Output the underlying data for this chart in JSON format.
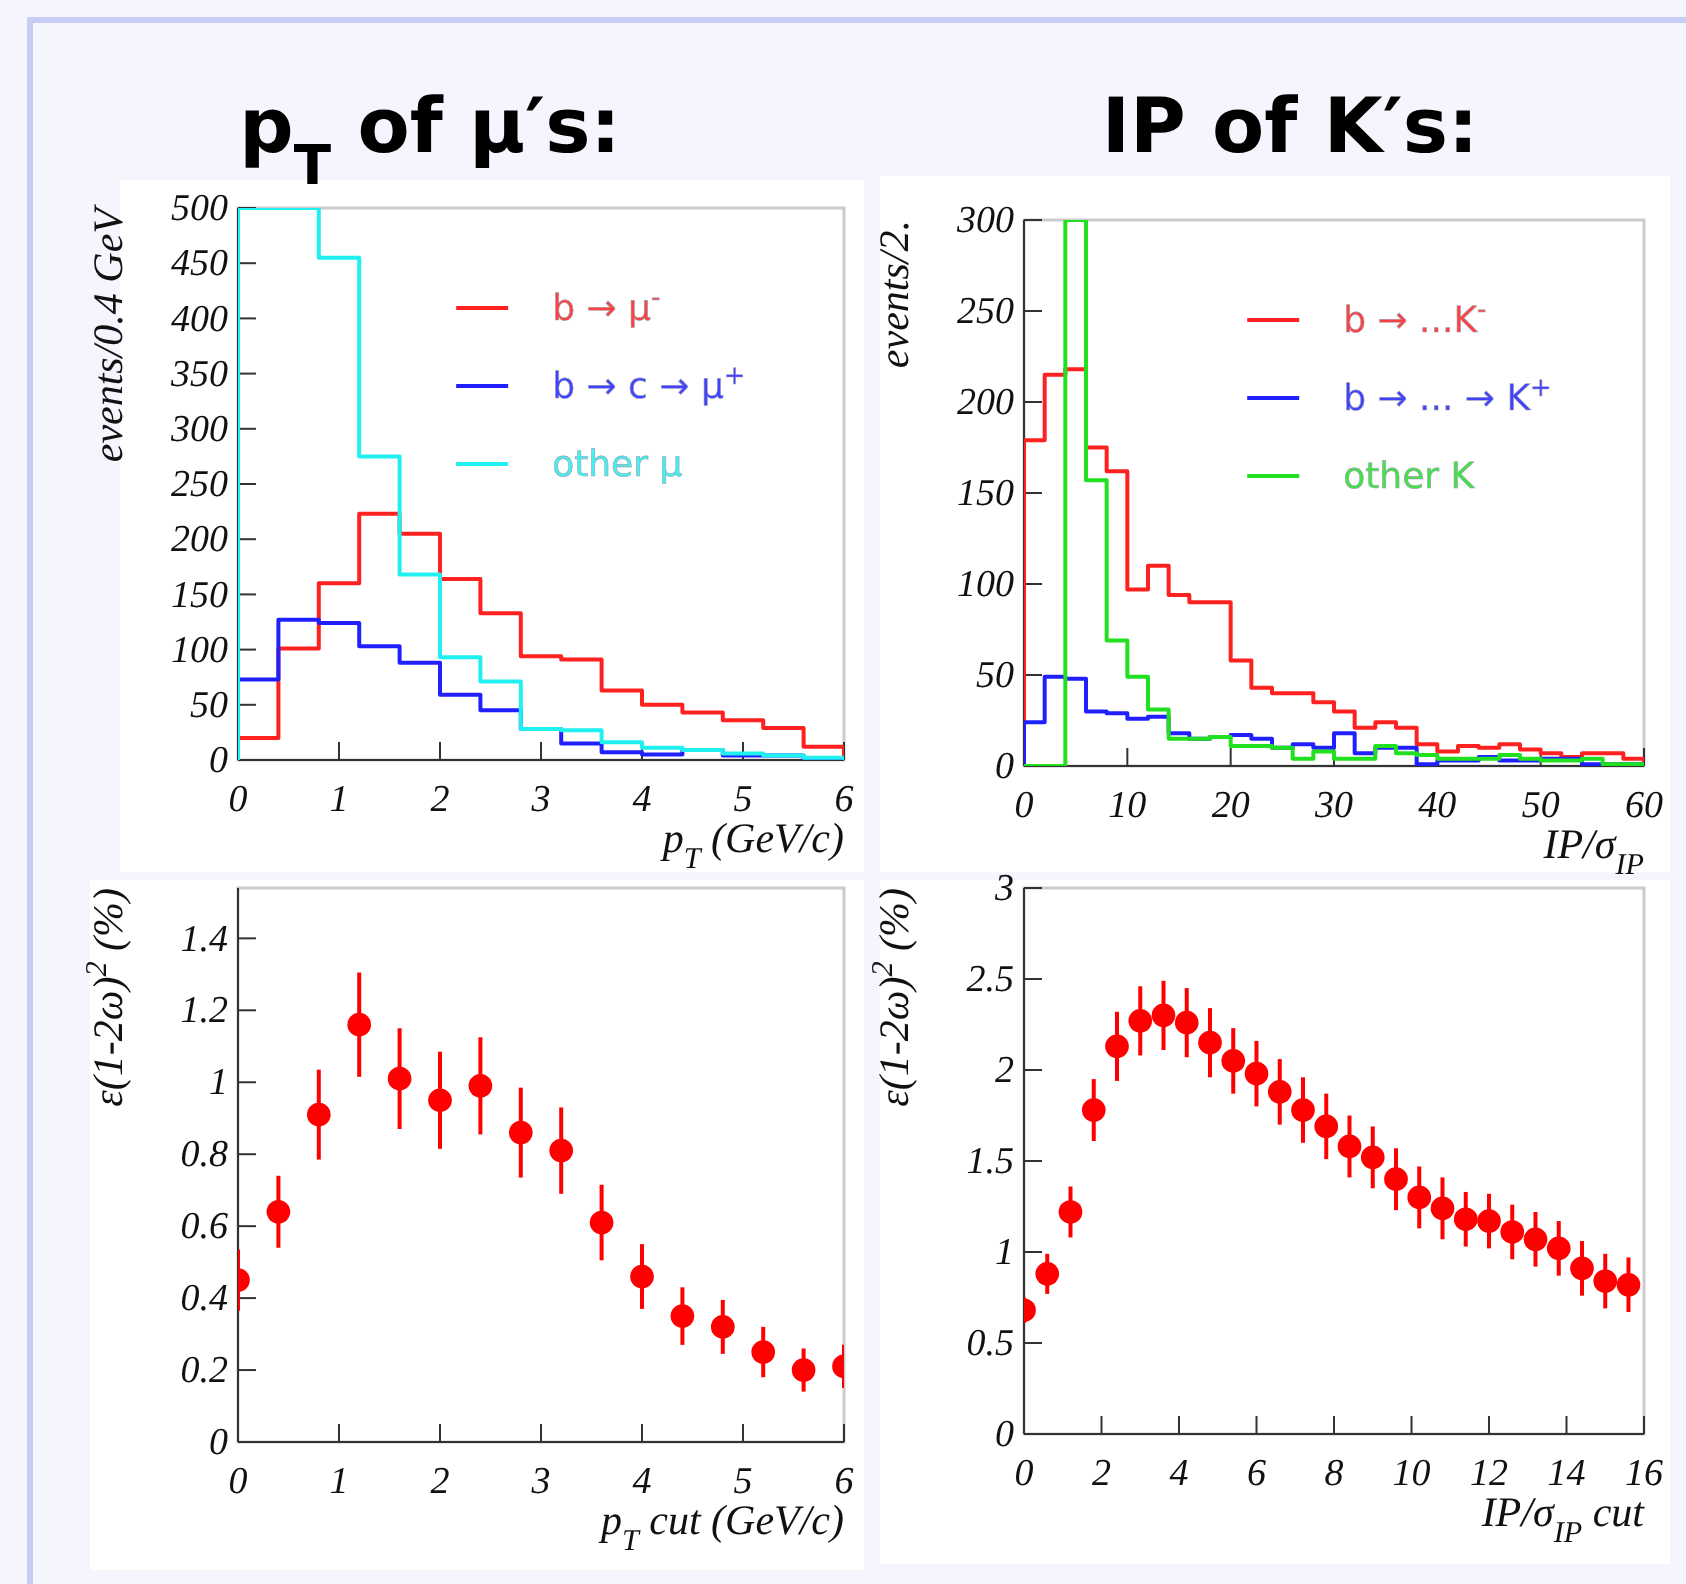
{
  "chart_data": [
    {
      "type": "histogram",
      "title": "p$_{T}$ of μ′s:",
      "xlabel": "p$_{T}$ (GeV/c)",
      "ylabel": "events/0.4 GeV",
      "legend": "top right",
      "bins": [
        0,
        0.4,
        0.8,
        1.2,
        1.6,
        2,
        2.4,
        2.8,
        3.2,
        3.6,
        4,
        4.4,
        4.8,
        5.2,
        5.6,
        6
      ],
      "series": [
        {
          "name": "b → μ$^{-}$",
          "color": "#ff2020",
          "values": [
            20,
            101,
            160,
            223,
            205,
            164,
            133,
            94,
            91,
            63,
            50,
            43,
            36,
            29,
            12
          ]
        },
        {
          "name": "b → c → μ$^{+}$",
          "color": "#2020ff",
          "values": [
            73,
            127,
            124,
            103,
            88,
            59,
            45,
            28,
            15,
            7,
            5,
            9,
            4,
            4,
            1
          ]
        },
        {
          "name": "other μ",
          "color": "#20f0f0",
          "values": [
            500,
            500,
            455,
            275,
            168,
            93,
            71,
            28,
            27,
            16,
            11,
            9,
            6,
            4,
            2
          ]
        }
      ],
      "xlim": [
        0,
        6
      ],
      "ylim": [
        0,
        500
      ],
      "xticks": [
        0,
        1,
        2,
        3,
        4,
        5,
        6
      ],
      "yticks": [
        0,
        50,
        100,
        150,
        200,
        250,
        300,
        350,
        400,
        450,
        500
      ]
    },
    {
      "type": "histogram",
      "title": "IP of K′s:",
      "xlabel": "IP/σ$_{IP}$",
      "ylabel": "events/2.",
      "legend": "top right",
      "bins": [
        0,
        2,
        4,
        6,
        8,
        10,
        12,
        14,
        16,
        18,
        20,
        22,
        24,
        26,
        28,
        30,
        32,
        34,
        36,
        38,
        40,
        42,
        44,
        46,
        48,
        50,
        52,
        54,
        56,
        58,
        60
      ],
      "series": [
        {
          "name": "b → ...K$^{-}$",
          "color": "#ff2020",
          "values": [
            179,
            215,
            218,
            175,
            162,
            97,
            110,
            94,
            90,
            90,
            58,
            43,
            40,
            40,
            35,
            30,
            21,
            24,
            21,
            12,
            8,
            11,
            10,
            12,
            9,
            7,
            5,
            7,
            7,
            4
          ]
        },
        {
          "name": "b → ... → K$^{+}$",
          "color": "#2020ff",
          "values": [
            24,
            49,
            48,
            30,
            29,
            26,
            27,
            18,
            15,
            16,
            17,
            15,
            10,
            12,
            10,
            18,
            7,
            10,
            10,
            1,
            3,
            3,
            5,
            3,
            3,
            4,
            4,
            1,
            1,
            1
          ]
        },
        {
          "name": "other K",
          "color": "#20e020",
          "values": [
            0,
            0,
            300,
            157,
            69,
            49,
            31,
            15,
            15,
            16,
            11,
            11,
            10,
            4,
            8,
            4,
            4,
            11,
            7,
            6,
            4,
            4,
            4,
            6,
            4,
            3,
            3,
            4,
            1,
            1
          ]
        }
      ],
      "xlim": [
        0,
        60
      ],
      "ylim": [
        0,
        300
      ],
      "xticks": [
        0,
        10,
        20,
        30,
        40,
        50,
        60
      ],
      "yticks": [
        0,
        50,
        100,
        150,
        200,
        250,
        300
      ]
    },
    {
      "type": "scatter",
      "xlabel": "p$_{T}$ cut (GeV/c)",
      "ylabel": "ε(1-2ω)$^{2}$ (%)",
      "marker": "circle",
      "color": "#ff0000",
      "x": [
        0,
        0.4,
        0.8,
        1.2,
        1.6,
        2,
        2.4,
        2.8,
        3.2,
        3.6,
        4,
        4.4,
        4.8,
        5.2,
        5.6,
        6
      ],
      "values": [
        0.45,
        0.64,
        0.91,
        1.16,
        1.01,
        0.95,
        0.99,
        0.86,
        0.81,
        0.61,
        0.46,
        0.35,
        0.32,
        0.25,
        0.2,
        0.21
      ],
      "errors": [
        0.085,
        0.1,
        0.125,
        0.145,
        0.14,
        0.135,
        0.135,
        0.125,
        0.12,
        0.105,
        0.09,
        0.08,
        0.075,
        0.07,
        0.06,
        0.06
      ],
      "xlim": [
        0,
        6
      ],
      "ylim": [
        0,
        1.54
      ],
      "xticks": [
        0,
        1,
        2,
        3,
        4,
        5,
        6
      ],
      "yticks": [
        0,
        0.2,
        0.4,
        0.6,
        0.8,
        1,
        1.2,
        1.4
      ]
    },
    {
      "type": "scatter",
      "xlabel": "IP/σ$_{IP}$ cut",
      "ylabel": "ε(1-2ω)$^{2}$ (%)",
      "marker": "circle",
      "color": "#ff0000",
      "x": [
        0,
        0.6,
        1.2,
        1.8,
        2.4,
        3,
        3.6,
        4.2,
        4.8,
        5.4,
        6,
        6.6,
        7.2,
        7.8,
        8.4,
        9,
        9.6,
        10.2,
        10.8,
        11.4,
        12,
        12.6,
        13.2,
        13.8,
        14.4,
        15,
        15.6
      ],
      "values": [
        0.68,
        0.88,
        1.22,
        1.78,
        2.13,
        2.27,
        2.3,
        2.26,
        2.15,
        2.05,
        1.98,
        1.88,
        1.78,
        1.69,
        1.58,
        1.52,
        1.4,
        1.3,
        1.24,
        1.18,
        1.17,
        1.11,
        1.07,
        1.02,
        0.91,
        0.84,
        0.82
      ],
      "errors": [
        0.07,
        0.11,
        0.14,
        0.17,
        0.19,
        0.19,
        0.19,
        0.19,
        0.19,
        0.18,
        0.18,
        0.18,
        0.18,
        0.18,
        0.17,
        0.17,
        0.17,
        0.17,
        0.17,
        0.15,
        0.15,
        0.15,
        0.15,
        0.15,
        0.15,
        0.15,
        0.15
      ],
      "xlim": [
        0,
        16
      ],
      "ylim": [
        0,
        3
      ],
      "xticks": [
        0,
        2,
        4,
        6,
        8,
        10,
        12,
        14,
        16
      ],
      "yticks": [
        0,
        0.5,
        1,
        1.5,
        2,
        2.5,
        3
      ]
    }
  ]
}
